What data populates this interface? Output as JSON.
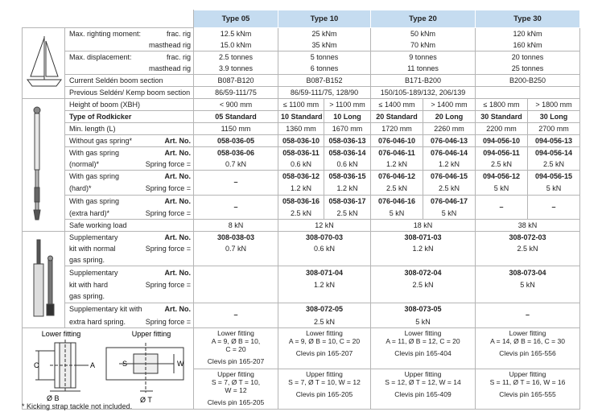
{
  "table": {
    "header": [
      "Type 05",
      "Type 10",
      "Type 20",
      "Type 30"
    ],
    "rows": [
      {
        "label": "Max. righting moment:",
        "sub": "frac. rig",
        "cells": [
          "12.5 kNm",
          "25 kNm",
          "50 kNm",
          "120 kNm"
        ]
      },
      {
        "sub": "masthead rig",
        "cells": [
          "15.0 kNm",
          "35 kNm",
          "70 kNm",
          "160 kNm"
        ]
      },
      {
        "label": "Max. displacement:",
        "sub": "frac. rig",
        "cells": [
          "2.5 tonnes",
          "5 tonnes",
          "9 tonnes",
          "20 tonnes"
        ]
      },
      {
        "sub": "masthead rig",
        "cells": [
          "3.9 tonnes",
          "6 tonnes",
          "11 tonnes",
          "25 tonnes"
        ]
      },
      {
        "label": "Current Seldén boom section",
        "cells": [
          "B087-B120",
          "B087-B152",
          "B171-B200",
          "B200-B250"
        ]
      },
      {
        "label": "Previous Seldén/ Kemp boom section",
        "cells": [
          "86/59-111/75",
          "86/59-111/75, 128/90",
          "150/105-189/132, 206/139"
        ]
      },
      {
        "label": "Height of boom (XBH)",
        "cells": [
          "< 900 mm",
          "≤ 1100 mm",
          "> 1100 mm",
          "≤ 1400 mm",
          "> 1400 mm",
          "≤ 1800 mm",
          "> 1800 mm"
        ]
      },
      {
        "label": "Type of Rodkicker",
        "cells": [
          "05 Standard",
          "10 Standard",
          "10 Long",
          "20 Standard",
          "20 Long",
          "30 Standard",
          "30 Long"
        ]
      },
      {
        "label": "Min. length (L)",
        "cells": [
          "1150 mm",
          "1360 mm",
          "1670 mm",
          "1720 mm",
          "2260 mm",
          "2200 mm",
          "2700 mm"
        ]
      },
      {
        "label": "Without gas spring*",
        "sub": "Art. No.",
        "cells": [
          "058-036-05",
          "058-036-10",
          "058-036-13",
          "076-046-10",
          "076-046-13",
          "094-056-10",
          "094-056-13"
        ]
      },
      {
        "label": "With gas spring",
        "sub": "Art. No.",
        "cells": [
          "058-036-06",
          "058-036-11",
          "058-036-14",
          "076-046-11",
          "076-046-14",
          "094-056-11",
          "094-056-14"
        ]
      },
      {
        "label": "(normal)*",
        "sub": "Spring force =",
        "cells": [
          "0.7 kN",
          "0.6 kN",
          "0.6 kN",
          "1.2 kN",
          "1.2 kN",
          "2.5 kN",
          "2.5 kN"
        ]
      },
      {
        "label": "With gas spring",
        "sub": "Art. No.",
        "cells": [
          "–",
          "058-036-12",
          "058-036-15",
          "076-046-12",
          "076-046-15",
          "094-056-12",
          "094-056-15"
        ]
      },
      {
        "label": "(hard)*",
        "sub": "Spring force =",
        "cells": [
          "1.2 kN",
          "1.2 kN",
          "2.5 kN",
          "2.5 kN",
          "5 kN",
          "5 kN"
        ]
      },
      {
        "label": "With gas spring",
        "sub": "Art. No.",
        "cells": [
          "–",
          "058-036-16",
          "058-036-17",
          "076-046-16",
          "076-046-17",
          "–",
          "–"
        ]
      },
      {
        "label": "(extra hard)*",
        "sub": "Spring force =",
        "cells": [
          "2.5 kN",
          "2.5 kN",
          "5 kN",
          "5 kN"
        ]
      },
      {
        "label": "Safe working load",
        "cells": [
          "8 kN",
          "12 kN",
          "18 kN",
          "38 kN"
        ]
      },
      {
        "label": "Supplementary",
        "sub": "Art. No.",
        "cells": [
          "308-038-03",
          "308-070-03",
          "308-071-03",
          "308-072-03"
        ]
      },
      {
        "label": "kit with normal",
        "sub": "Spring force =",
        "cells": [
          "0.7 kN",
          "0.6 kN",
          "1.2 kN",
          "2.5 kN"
        ]
      },
      {
        "label": "gas spring."
      },
      {
        "label": "Supplementary",
        "sub": "Art. No.",
        "cells": [
          "308-071-04",
          "308-072-04",
          "308-073-04"
        ]
      },
      {
        "label": "kit with hard",
        "sub": "Spring force =",
        "cells": [
          "1.2 kN",
          "2.5 kN",
          "5 kN"
        ]
      },
      {
        "label": "gas spring."
      },
      {
        "label": "Supplementary kit with",
        "sub": "Art. No.",
        "cells": [
          "–",
          "308-072-05",
          "308-073-05",
          "–"
        ]
      },
      {
        "label": "extra hard spring.",
        "sub": "Spring force =",
        "cells": [
          "2.5 kN",
          "5 kN"
        ]
      }
    ],
    "fittings": {
      "diagram": {
        "lower": "Lower fitting",
        "upper": "Upper fitting",
        "letters": [
          "C",
          "A",
          "Ø B",
          "S",
          "W",
          "Ø T"
        ]
      },
      "lower": [
        {
          "lines": [
            "Lower fitting",
            "A = 9, Ø B = 10,",
            "C = 20"
          ],
          "pin": "Clevis pin 165-207"
        },
        {
          "lines": [
            "Lower fitting",
            "A = 9, Ø B = 10, C = 20"
          ],
          "pin": "Clevis pin 165-207"
        },
        {
          "lines": [
            "Lower fitting",
            "A = 11, Ø B = 12, C = 20"
          ],
          "pin": "Clevis pin 165-404"
        },
        {
          "lines": [
            "Lower fitting",
            "A = 14, Ø B = 16, C = 30"
          ],
          "pin": "Clevis pin 165-556"
        }
      ],
      "upper": [
        {
          "lines": [
            "Upper fitting",
            "S = 7, Ø T = 10,",
            "W = 12"
          ],
          "pin": "Clevis pin 165-205"
        },
        {
          "lines": [
            "Upper fitting",
            "S = 7, Ø T = 10, W = 12"
          ],
          "pin": "Clevis pin 165-205"
        },
        {
          "lines": [
            "Upper fitting",
            "S = 12, Ø T = 12, W = 14"
          ],
          "pin": "Clevis pin 165-409"
        },
        {
          "lines": [
            "Upper fitting",
            "S = 11, Ø T = 16, W = 16"
          ],
          "pin": "Clevis pin 165-555"
        }
      ]
    }
  },
  "footnote": "* Kicking strap tackle not included."
}
